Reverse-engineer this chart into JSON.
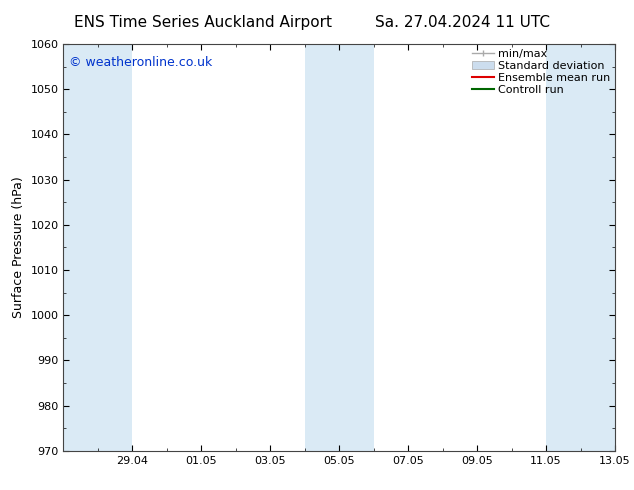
{
  "title_left": "ENS Time Series Auckland Airport",
  "title_right": "Sa. 27.04.2024 11 UTC",
  "ylabel": "Surface Pressure (hPa)",
  "ylim": [
    970,
    1060
  ],
  "yticks": [
    970,
    980,
    990,
    1000,
    1010,
    1020,
    1030,
    1040,
    1050,
    1060
  ],
  "xlabel_ticks": [
    "29.04",
    "01.05",
    "03.05",
    "05.05",
    "07.05",
    "09.05",
    "11.05",
    "13.05"
  ],
  "xtick_positions": [
    2,
    4,
    6,
    8,
    10,
    12,
    14,
    16
  ],
  "xlim": [
    0,
    16
  ],
  "background_color": "#ffffff",
  "plot_bg_color": "#ffffff",
  "shaded_band_color": "#daeaf5",
  "shade_ranges": [
    [
      0,
      2
    ],
    [
      7,
      9
    ],
    [
      14,
      16
    ]
  ],
  "watermark_text": "© weatheronline.co.uk",
  "watermark_color": "#0033cc",
  "legend_minmax_color": "#aaaaaa",
  "legend_std_color": "#ccddee",
  "legend_ens_color": "#dd0000",
  "legend_ctrl_color": "#006600",
  "title_fontsize": 11,
  "tick_fontsize": 8,
  "ylabel_fontsize": 9,
  "watermark_fontsize": 9,
  "legend_fontsize": 8
}
